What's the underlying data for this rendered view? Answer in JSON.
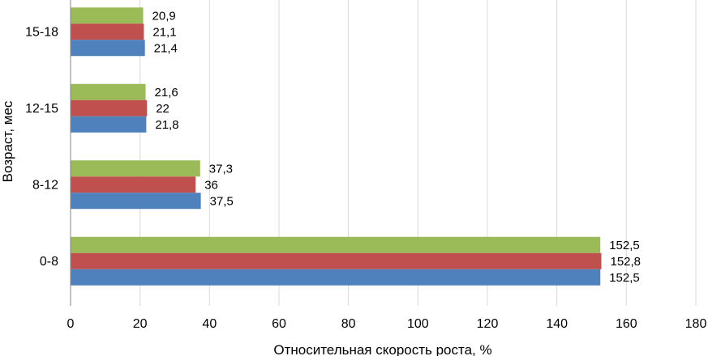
{
  "chart_data": {
    "type": "bar",
    "orientation": "horizontal",
    "title": "",
    "xlabel": "Относительная скорость роста, %",
    "ylabel": "Возраст, мес",
    "xlim": [
      0,
      180
    ],
    "x_ticks": [
      0,
      20,
      40,
      60,
      80,
      100,
      120,
      140,
      160,
      180
    ],
    "categories": [
      "15-18",
      "12-15",
      "8-12",
      "0-8"
    ],
    "grid": "vertical",
    "legend": "none",
    "series": [
      {
        "color": "#9bbb59",
        "values": [
          20.9,
          21.6,
          37.3,
          152.5
        ],
        "labels": [
          "20,9",
          "21,6",
          "37,3",
          "152,5"
        ]
      },
      {
        "color": "#c0504d",
        "values": [
          21.1,
          22,
          36,
          152.8
        ],
        "labels": [
          "21,1",
          "22",
          "36",
          "152,8"
        ]
      },
      {
        "color": "#4f81bd",
        "values": [
          21.4,
          21.8,
          37.5,
          152.5
        ],
        "labels": [
          "21,4",
          "21,8",
          "37,5",
          "152,5"
        ]
      }
    ]
  }
}
